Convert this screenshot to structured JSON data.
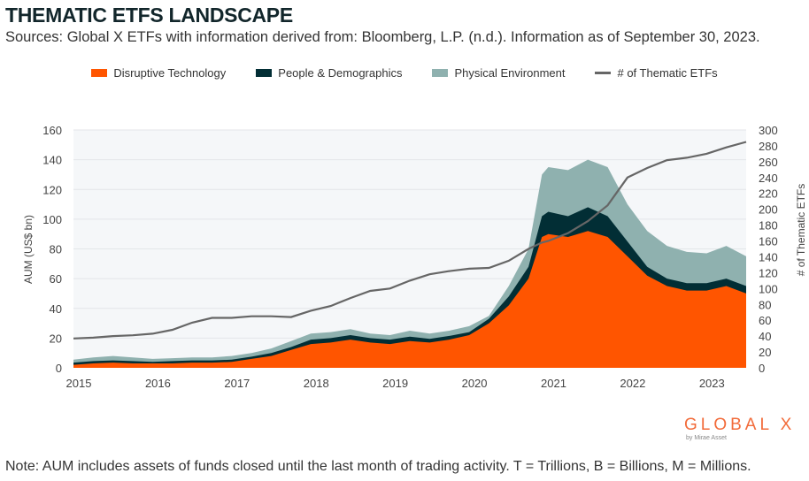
{
  "header": {
    "title": "THEMATIC ETFS LANDSCAPE",
    "subtitle": "Sources: Global X ETFs with information derived from: Bloomberg, L.P. (n.d.). Information as of September 30, 2023."
  },
  "footer": {
    "note": "Note: AUM includes assets of funds closed until the last month of trading activity. T = Trillions, B = Billions, M = Millions."
  },
  "logo": {
    "text": "GLOBAL X",
    "sub": "by Mirae Asset"
  },
  "chart_data": {
    "type": "area",
    "ylabel": "AUM (US$ bn)",
    "y2label": "# of Thematic ETFs",
    "ylim": [
      0,
      160
    ],
    "y2lim": [
      0,
      300
    ],
    "yticks": [
      "0",
      "20",
      "40",
      "60",
      "80",
      "100",
      "120",
      "140",
      "160"
    ],
    "y2ticks": [
      "0",
      "20",
      "40",
      "60",
      "80",
      "100",
      "120",
      "140",
      "160",
      "180",
      "200",
      "220",
      "240",
      "260",
      "280",
      "300"
    ],
    "xticks": [
      "2015",
      "2016",
      "2017",
      "2018",
      "2019",
      "2020",
      "2021",
      "2022",
      "2023"
    ],
    "grid": true,
    "legend": "top",
    "colors": {
      "Disruptive Technology": "#ff5500",
      "People & Demographics": "#022e35",
      "Physical Environment": "#8fb1af",
      "# of Thematic ETFs": "#666666",
      "plot_bg": "#f5f7f9"
    },
    "x": [
      2015.0,
      2015.25,
      2015.5,
      2015.75,
      2016.0,
      2016.25,
      2016.5,
      2016.75,
      2017.0,
      2017.25,
      2017.5,
      2017.75,
      2018.0,
      2018.25,
      2018.5,
      2018.75,
      2019.0,
      2019.25,
      2019.5,
      2019.75,
      2020.0,
      2020.25,
      2020.5,
      2020.75,
      2020.92,
      2021.0,
      2021.25,
      2021.5,
      2021.75,
      2022.0,
      2022.25,
      2022.5,
      2022.75,
      2023.0,
      2023.25,
      2023.5
    ],
    "series": [
      {
        "name": "Disruptive Technology",
        "stack": "area",
        "values": [
          2,
          3,
          3.5,
          3,
          3,
          3,
          3.5,
          3.5,
          4,
          6,
          8,
          12,
          16,
          17,
          19,
          17,
          16,
          18,
          17,
          19,
          22,
          30,
          42,
          60,
          88,
          90,
          88,
          92,
          88,
          75,
          62,
          55,
          52,
          52,
          55,
          50
        ]
      },
      {
        "name": "People & Demographics",
        "stack": "area",
        "values": [
          1.5,
          1.5,
          1.5,
          1.5,
          1,
          1.5,
          1.5,
          1.5,
          1.5,
          1.5,
          2,
          2,
          3,
          3,
          3,
          3,
          3,
          3,
          2.5,
          2.5,
          2,
          3,
          6,
          8,
          14,
          15,
          14,
          16,
          14,
          10,
          6,
          5,
          5,
          5,
          5,
          5
        ]
      },
      {
        "name": "Physical Environment",
        "stack": "area",
        "values": [
          2,
          2.5,
          3,
          2.5,
          2,
          2,
          2,
          2,
          2.5,
          2.5,
          3,
          4,
          4,
          4,
          4,
          3,
          3,
          4,
          3.5,
          3.5,
          4,
          2,
          7,
          12,
          28,
          30,
          31,
          32,
          33,
          25,
          24,
          22,
          21,
          20,
          22,
          20
        ]
      },
      {
        "name": "# of Thematic ETFs",
        "axis": "right",
        "type": "line",
        "values": [
          37,
          38,
          40,
          41,
          43,
          48,
          57,
          63,
          63,
          65,
          65,
          64,
          72,
          78,
          88,
          97,
          100,
          110,
          118,
          122,
          125,
          126,
          135,
          150,
          158,
          160,
          170,
          185,
          205,
          240,
          252,
          262,
          265,
          270,
          278,
          285
        ]
      }
    ]
  }
}
